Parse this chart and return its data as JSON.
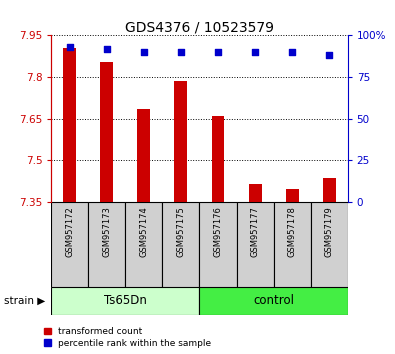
{
  "title": "GDS4376 / 10523579",
  "samples": [
    "GSM957172",
    "GSM957173",
    "GSM957174",
    "GSM957175",
    "GSM957176",
    "GSM957177",
    "GSM957178",
    "GSM957179"
  ],
  "transformed_counts": [
    7.905,
    7.855,
    7.685,
    7.785,
    7.66,
    7.415,
    7.395,
    7.435
  ],
  "percentile_ranks": [
    93,
    92,
    90,
    90,
    90,
    90,
    90,
    88
  ],
  "ylim_left": [
    7.35,
    7.95
  ],
  "yticks_left": [
    7.35,
    7.5,
    7.65,
    7.8,
    7.95
  ],
  "yticks_right": [
    0,
    25,
    50,
    75,
    100
  ],
  "ylim_right": [
    0,
    100
  ],
  "bar_color": "#cc0000",
  "dot_color": "#0000cc",
  "groups": [
    {
      "label": "Ts65Dn",
      "indices": [
        0,
        1,
        2,
        3
      ],
      "color": "#ccffcc"
    },
    {
      "label": "control",
      "indices": [
        4,
        5,
        6,
        7
      ],
      "color": "#44ee44"
    }
  ],
  "strain_label": "strain",
  "legend_items": [
    {
      "label": "transformed count",
      "color": "#cc0000"
    },
    {
      "label": "percentile rank within the sample",
      "color": "#0000cc"
    }
  ],
  "bar_width": 0.35,
  "grid_color": "black",
  "label_bg_color": "#d0d0d0",
  "plot_bg": "#ffffff"
}
